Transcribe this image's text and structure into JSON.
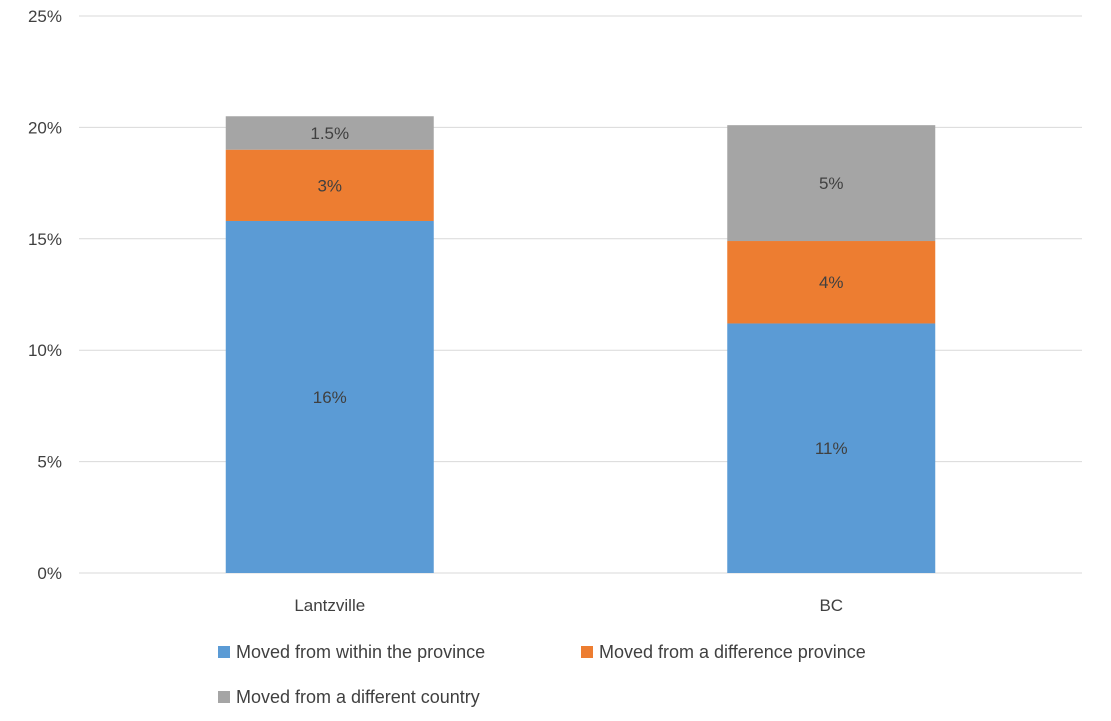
{
  "chart_data": {
    "type": "bar",
    "stacked": true,
    "categories": [
      "Lantzville",
      "BC"
    ],
    "series": [
      {
        "name": "Moved from within the province",
        "color": "#5B9BD5",
        "values": [
          15.8,
          11.2
        ],
        "labels": [
          "16%",
          "11%"
        ]
      },
      {
        "name": "Moved from a difference province",
        "color": "#ED7D31",
        "values": [
          3.2,
          3.7
        ],
        "labels": [
          "3%",
          "4%"
        ]
      },
      {
        "name": "Moved from a different country",
        "color": "#A5A5A5",
        "values": [
          1.5,
          5.2
        ],
        "labels": [
          "1.5%",
          "5%"
        ]
      }
    ],
    "ylim": [
      0,
      25
    ],
    "yticks": [
      0,
      5,
      10,
      15,
      20,
      25
    ],
    "ytick_labels": [
      "0%",
      "5%",
      "10%",
      "15%",
      "20%",
      "25%"
    ],
    "grid": true,
    "legend_position": "bottom",
    "title": "",
    "xlabel": "",
    "ylabel": ""
  }
}
